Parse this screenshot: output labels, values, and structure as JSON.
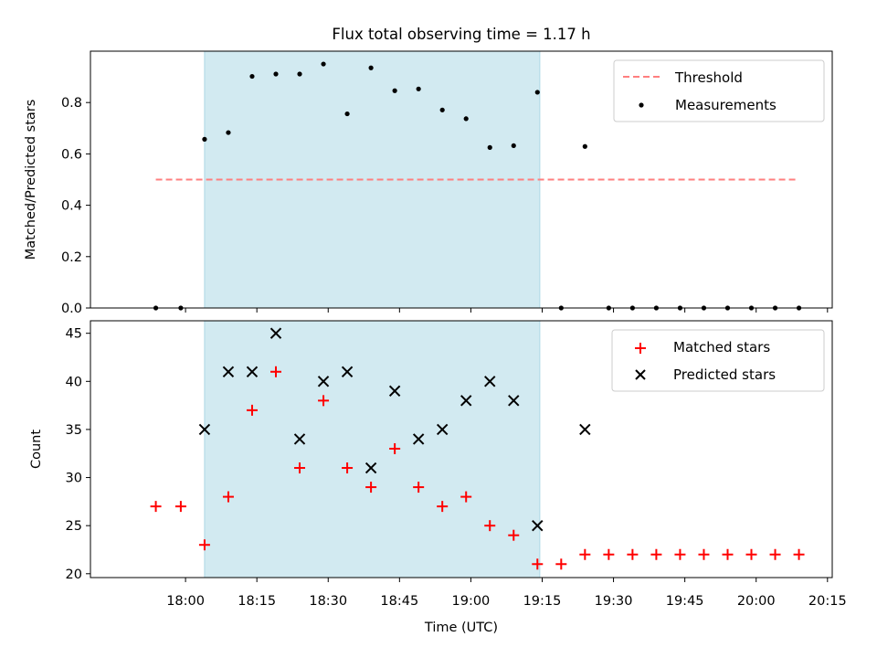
{
  "figure": {
    "title": "Flux total observing time = 1.17 h",
    "xlabel": "Time (UTC)",
    "x_ticks": [
      "18:00",
      "18:15",
      "18:30",
      "18:45",
      "19:00",
      "19:15",
      "19:30",
      "19:45",
      "20:00",
      "20:15"
    ],
    "x_tick_minutes": [
      1080,
      1095,
      1110,
      1125,
      1140,
      1155,
      1170,
      1185,
      1200,
      1215
    ],
    "xlim_minutes": [
      1060,
      1216
    ],
    "shaded_span_minutes": [
      1084,
      1154.5
    ],
    "colors": {
      "shade": "#add8e6",
      "threshold": "#ff7f7f",
      "measurements": "#000000",
      "matched": "#ff0000",
      "predicted": "#000000"
    }
  },
  "chart_data": [
    {
      "type": "scatter",
      "ylabel": "Matched/Predicted stars",
      "ylim": [
        0,
        1.0
      ],
      "y_ticks": [
        "0.0",
        "0.2",
        "0.4",
        "0.6",
        "0.8"
      ],
      "y_tick_values": [
        0,
        0.2,
        0.4,
        0.6,
        0.8
      ],
      "legend": {
        "placement": "top-right",
        "entries": [
          "Threshold",
          "Measurements"
        ]
      },
      "threshold": {
        "name": "Threshold",
        "y": 0.5,
        "x_range_minutes": [
          1073.75,
          1209
        ]
      },
      "series": [
        {
          "name": "Measurements",
          "x_minutes": [
            1073.75,
            1079,
            1084,
            1089,
            1094,
            1099,
            1104,
            1109,
            1114,
            1119,
            1124,
            1129,
            1134,
            1139,
            1144,
            1149,
            1154,
            1159,
            1164,
            1169,
            1174,
            1179,
            1184,
            1189,
            1194,
            1199,
            1204,
            1209
          ],
          "y": [
            0,
            0,
            0.657,
            0.683,
            0.902,
            0.911,
            0.911,
            0.95,
            0.756,
            0.935,
            0.846,
            0.853,
            0.771,
            0.737,
            0.625,
            0.632,
            0.84,
            0,
            0.629,
            0,
            0,
            0,
            0,
            0,
            0,
            0,
            0,
            0
          ]
        }
      ]
    },
    {
      "type": "scatter",
      "ylabel": "Count",
      "ylim": [
        19.6,
        46.3
      ],
      "y_ticks": [
        "20",
        "25",
        "30",
        "35",
        "40",
        "45"
      ],
      "y_tick_values": [
        20,
        25,
        30,
        35,
        40,
        45
      ],
      "legend": {
        "placement": "top-right",
        "entries": [
          "Matched stars",
          "Predicted stars"
        ]
      },
      "series": [
        {
          "name": "Matched stars",
          "marker": "+",
          "x_minutes": [
            1073.75,
            1079,
            1084,
            1089,
            1094,
            1099,
            1104,
            1109,
            1114,
            1119,
            1124,
            1129,
            1134,
            1139,
            1144,
            1149,
            1154,
            1159,
            1164,
            1169,
            1174,
            1179,
            1184,
            1189,
            1194,
            1199,
            1204,
            1209
          ],
          "y": [
            27,
            27,
            23,
            28,
            37,
            41,
            31,
            38,
            31,
            29,
            33,
            29,
            27,
            28,
            25,
            24,
            21,
            21,
            22,
            22,
            22,
            22,
            22,
            22,
            22,
            22,
            22,
            22
          ]
        },
        {
          "name": "Predicted stars",
          "marker": "x",
          "x_minutes": [
            1084,
            1089,
            1094,
            1099,
            1104,
            1109,
            1114,
            1119,
            1124,
            1129,
            1134,
            1139,
            1144,
            1149,
            1154,
            1164
          ],
          "y": [
            35,
            41,
            41,
            45,
            34,
            40,
            41,
            31,
            39,
            34,
            35,
            38,
            40,
            38,
            25,
            35
          ]
        }
      ]
    }
  ]
}
